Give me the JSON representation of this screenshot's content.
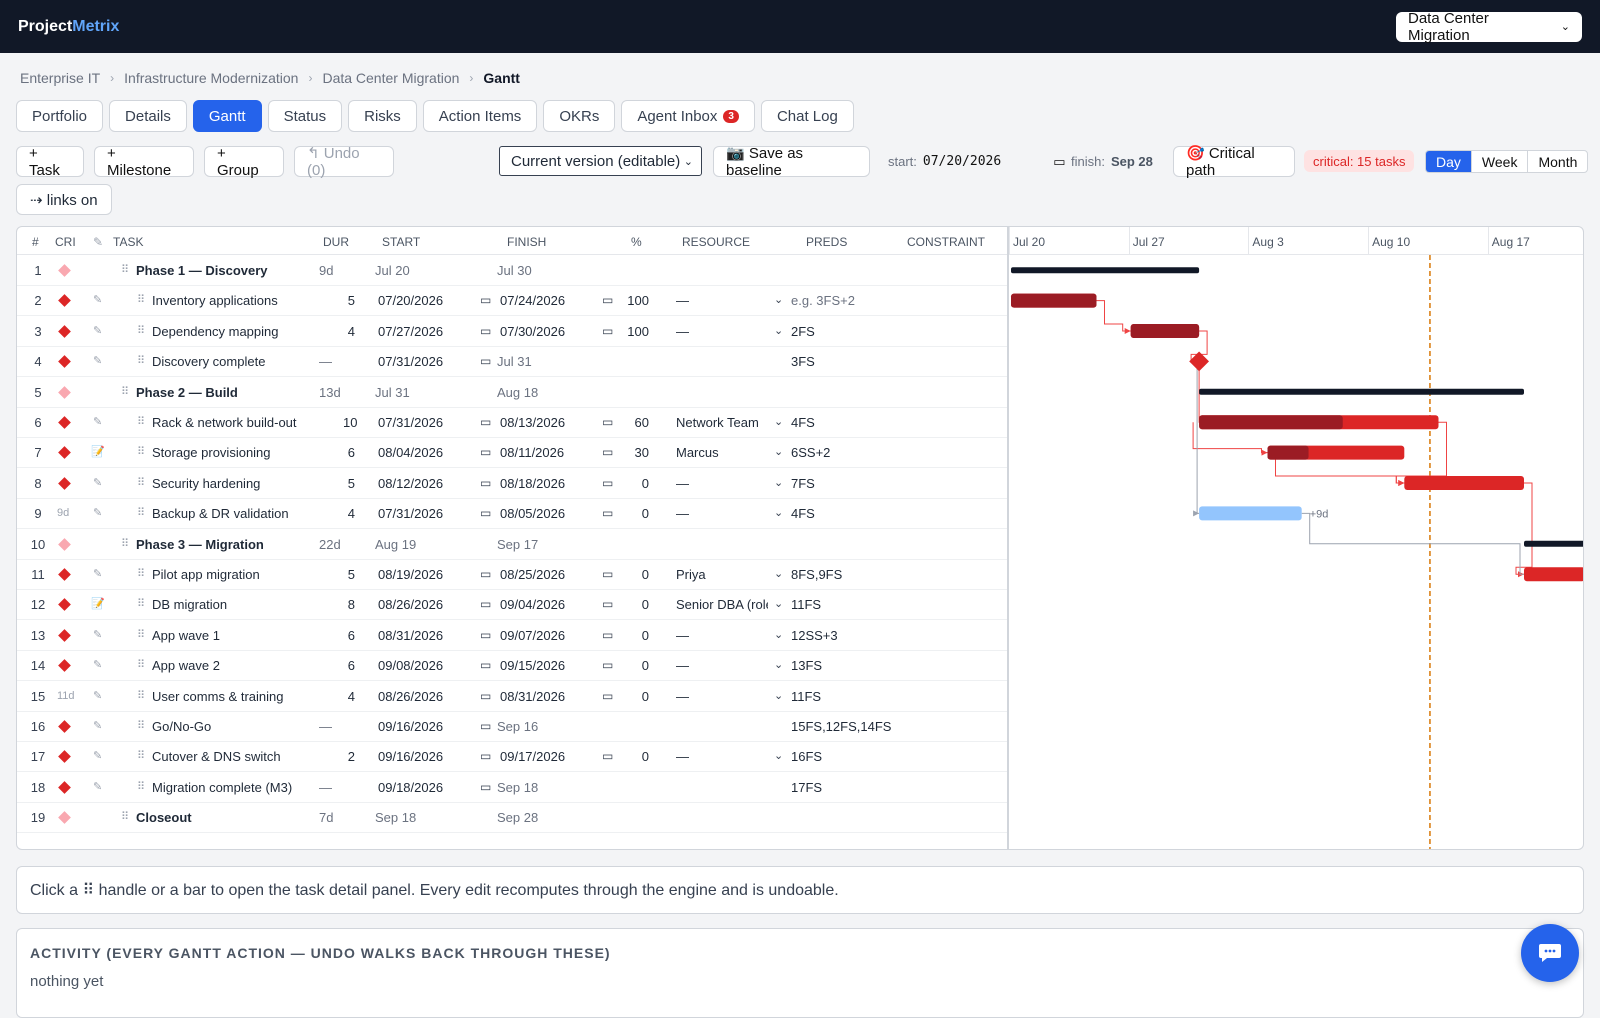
{
  "app": {
    "brand_a": "Project",
    "brand_b": "Metrix",
    "project_select": "Data Center Migration"
  },
  "breadcrumb": [
    "Enterprise IT",
    "Infrastructure Modernization",
    "Data Center Migration",
    "Gantt"
  ],
  "tabs": [
    {
      "label": "Portfolio"
    },
    {
      "label": "Details"
    },
    {
      "label": "Gantt",
      "active": true
    },
    {
      "label": "Status"
    },
    {
      "label": "Risks"
    },
    {
      "label": "Action Items"
    },
    {
      "label": "OKRs"
    },
    {
      "label": "Agent Inbox",
      "badge": "3"
    },
    {
      "label": "Chat Log"
    }
  ],
  "toolbar": {
    "add_task": "+ Task",
    "add_milestone": "+ Milestone",
    "add_group": "+ Group",
    "undo": "↰ Undo (0)",
    "version": "Current version (editable)",
    "save_baseline": "📷 Save as baseline",
    "start_label": "start:",
    "start_value": "07/20/2026",
    "finish_label": "finish:",
    "finish_value": "Sep 28",
    "critical_path": "🎯 Critical path",
    "critical_badge": "critical: 15 tasks",
    "zoom": [
      "Day",
      "Week",
      "Month"
    ],
    "zoom_selected": "Day",
    "links": "⇢ links on"
  },
  "columns": {
    "num": "#",
    "cri": "CRI",
    "edit": "✎",
    "task": "TASK",
    "dur": "DUR",
    "start": "START",
    "finish": "FINISH",
    "pct": "%",
    "resource": "RESOURCE",
    "preds": "PREDS",
    "constraint": "CONSTRAINT"
  },
  "timeline": {
    "ticks": [
      "Jul 20",
      "Jul 27",
      "Aug 3",
      "Aug 10",
      "Aug 17"
    ],
    "today_marker_day": 24.5,
    "lag_label": "+9d"
  },
  "rows": [
    {
      "n": "1",
      "type": "group",
      "crit": "light",
      "task": "Phase 1 — Discovery",
      "dur": "9d",
      "start": "Jul 20",
      "finish": "Jul 30",
      "bar": [
        0,
        11
      ]
    },
    {
      "n": "2",
      "type": "task",
      "crit": "red",
      "task": "Inventory applications",
      "dur": "5",
      "start": "07/20/2026",
      "finish": "07/24/2026",
      "pct": "100",
      "res": "—",
      "preds": "e.g. 3FS+2",
      "preds_placeholder": true,
      "bar": [
        0,
        5
      ],
      "done": 1
    },
    {
      "n": "3",
      "type": "task",
      "crit": "red",
      "task": "Dependency mapping",
      "dur": "4",
      "start": "07/27/2026",
      "finish": "07/30/2026",
      "pct": "100",
      "res": "—",
      "preds": "2FS",
      "bar": [
        7,
        4
      ],
      "done": 1
    },
    {
      "n": "4",
      "type": "milestone",
      "crit": "red",
      "task": "Discovery complete",
      "dur": "—",
      "start": "07/31/2026",
      "finish": "Jul 31",
      "preds": "3FS",
      "bar": [
        11,
        0
      ]
    },
    {
      "n": "5",
      "type": "group",
      "crit": "light",
      "task": "Phase 2 — Build",
      "dur": "13d",
      "start": "Jul 31",
      "finish": "Aug 18",
      "bar": [
        11,
        19
      ]
    },
    {
      "n": "6",
      "type": "task",
      "crit": "red",
      "task": "Rack & network build-out",
      "dur": "10",
      "start": "07/31/2026",
      "finish": "08/13/2026",
      "pct": "60",
      "res": "Network Team",
      "preds": "4FS",
      "bar": [
        11,
        14
      ],
      "done": 0.6
    },
    {
      "n": "7",
      "type": "task",
      "crit": "red",
      "note": true,
      "task": "Storage provisioning",
      "dur": "6",
      "start": "08/04/2026",
      "finish": "08/11/2026",
      "pct": "30",
      "res": "Marcus",
      "preds": "6SS+2",
      "bar": [
        15,
        8
      ],
      "done": 0.3
    },
    {
      "n": "8",
      "type": "task",
      "crit": "red",
      "task": "Security hardening",
      "dur": "5",
      "start": "08/12/2026",
      "finish": "08/18/2026",
      "pct": "0",
      "res": "—",
      "preds": "7FS",
      "bar": [
        23,
        7
      ],
      "done": 0
    },
    {
      "n": "9",
      "type": "task",
      "crit": "slack",
      "slack": "9d",
      "task": "Backup & DR validation",
      "dur": "4",
      "start": "07/31/2026",
      "finish": "08/05/2026",
      "pct": "0",
      "res": "—",
      "preds": "4FS",
      "bar": [
        11,
        6
      ],
      "done": 0,
      "noncrit": true
    },
    {
      "n": "10",
      "type": "group",
      "crit": "light",
      "task": "Phase 3 — Migration",
      "dur": "22d",
      "start": "Aug 19",
      "finish": "Sep 17",
      "bar": [
        30,
        30
      ]
    },
    {
      "n": "11",
      "type": "task",
      "crit": "red",
      "task": "Pilot app migration",
      "dur": "5",
      "start": "08/19/2026",
      "finish": "08/25/2026",
      "pct": "0",
      "res": "Priya",
      "preds": "8FS,9FS",
      "bar": [
        30,
        7
      ],
      "done": 0
    },
    {
      "n": "12",
      "type": "task",
      "crit": "red",
      "note": true,
      "task": "DB migration",
      "dur": "8",
      "start": "08/26/2026",
      "finish": "09/04/2026",
      "pct": "0",
      "res": "Senior DBA (role)",
      "preds": "11FS"
    },
    {
      "n": "13",
      "type": "task",
      "crit": "red",
      "task": "App wave 1",
      "dur": "6",
      "start": "08/31/2026",
      "finish": "09/07/2026",
      "pct": "0",
      "res": "—",
      "preds": "12SS+3"
    },
    {
      "n": "14",
      "type": "task",
      "crit": "red",
      "task": "App wave 2",
      "dur": "6",
      "start": "09/08/2026",
      "finish": "09/15/2026",
      "pct": "0",
      "res": "—",
      "preds": "13FS"
    },
    {
      "n": "15",
      "type": "task",
      "crit": "slack",
      "slack": "11d",
      "task": "User comms & training",
      "dur": "4",
      "start": "08/26/2026",
      "finish": "08/31/2026",
      "pct": "0",
      "res": "—",
      "preds": "11FS"
    },
    {
      "n": "16",
      "type": "milestone",
      "crit": "red",
      "task": "Go/No-Go",
      "dur": "—",
      "start": "09/16/2026",
      "finish": "Sep 16",
      "preds": "15FS,12FS,14FS"
    },
    {
      "n": "17",
      "type": "task",
      "crit": "red",
      "task": "Cutover & DNS switch",
      "dur": "2",
      "start": "09/16/2026",
      "finish": "09/17/2026",
      "pct": "0",
      "res": "—",
      "preds": "16FS"
    },
    {
      "n": "18",
      "type": "milestone",
      "crit": "red",
      "task": "Migration complete (M3)",
      "dur": "—",
      "start": "09/18/2026",
      "finish": "Sep 18",
      "preds": "17FS"
    },
    {
      "n": "19",
      "type": "group",
      "crit": "light",
      "task": "Closeout",
      "dur": "7d",
      "start": "Sep 18",
      "finish": "Sep 28"
    }
  ],
  "info_text": "Click a ⠿ handle or a bar to open the task detail panel. Every edit recomputes through the engine and is undoable.",
  "activity": {
    "title": "ACTIVITY (EVERY GANTT ACTION — UNDO WALKS BACK THROUGH THESE)",
    "empty": "nothing yet"
  },
  "colors": {
    "accent": "#2563eb",
    "critical": "#dc2626",
    "critical_done": "#9b1c24",
    "noncritical": "#93c5fd",
    "group": "#111827",
    "today": "#d97706"
  }
}
